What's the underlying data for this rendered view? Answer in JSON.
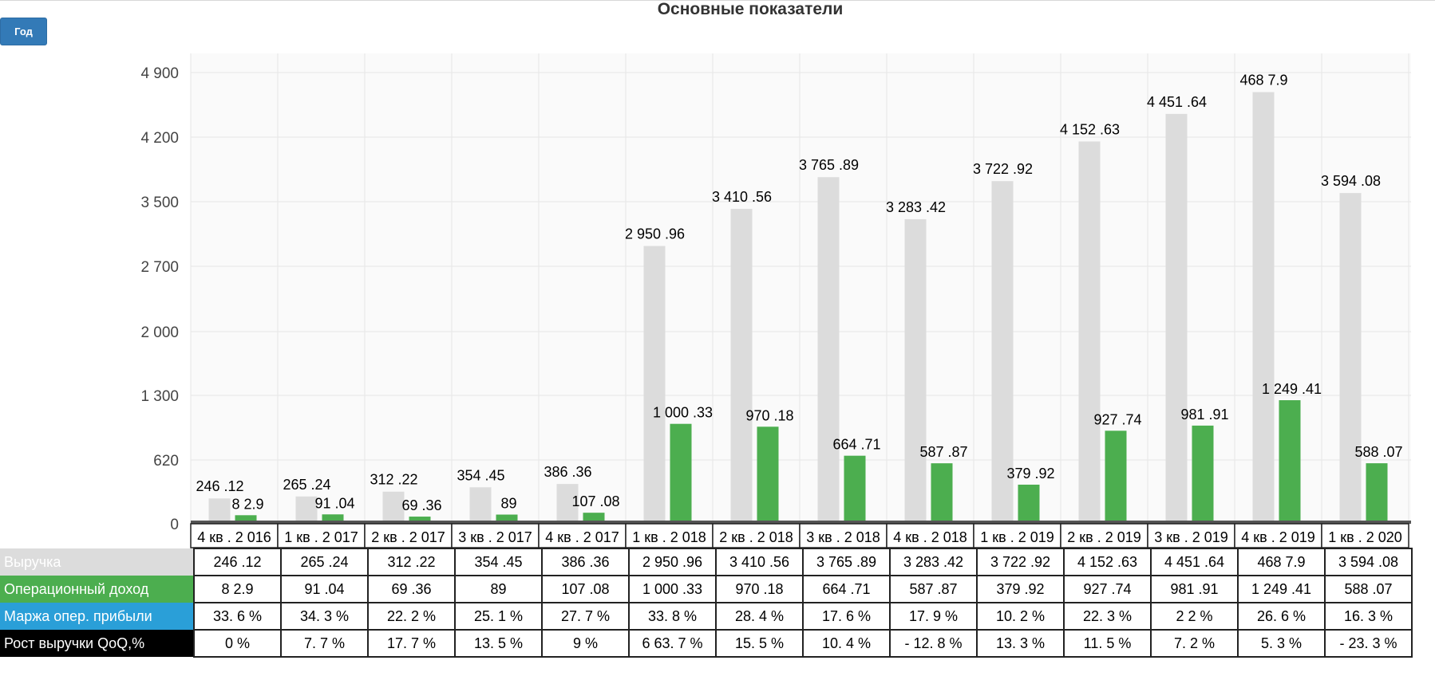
{
  "title": "Основные показатели",
  "period_button": "Год",
  "colors": {
    "revenue": "#dcdcdc",
    "operating_income": "#4cae4f",
    "margin": "#2a9fd8",
    "growth": "#000000"
  },
  "chart_data": {
    "type": "bar",
    "title": "Основные показатели",
    "grid": true,
    "categories": [
      "4 кв . 2 016",
      "1 кв . 2 017",
      "2 кв . 2 017",
      "3 кв . 2 017",
      "4 кв . 2 017",
      "1 кв . 2 018",
      "2 кв . 2 018",
      "3 кв . 2 018",
      "4 кв . 2 018",
      "1 кв . 2 019",
      "2 кв . 2 019",
      "3 кв . 2 019",
      "4 кв . 2 019",
      "1 кв . 2 020"
    ],
    "y_ticks": [
      0,
      620,
      1300,
      2000,
      2700,
      3500,
      4200,
      4900
    ],
    "y_tick_labels": [
      "0",
      "620",
      "1 300",
      "2 000",
      "2 700",
      "3 500",
      "4 200",
      "4 900"
    ],
    "ylim": [
      0,
      5100
    ],
    "series": [
      {
        "name": "Выручка",
        "values": [
          246.12,
          265.24,
          312.22,
          354.45,
          386.36,
          2950.96,
          3410.56,
          3765.89,
          3283.42,
          3722.92,
          4152.63,
          4451.64,
          4687.9,
          3594.08
        ],
        "labels": [
          "246 .12",
          "265 .24",
          "312 .22",
          "354 .45",
          "386 .36",
          "2 950 .96",
          "3 410 .56",
          "3 765 .89",
          "3 283 .42",
          "3 722 .92",
          "4 152 .63",
          "4 451 .64",
          "468 7.9",
          "3 594 .08"
        ]
      },
      {
        "name": "Операционный доход",
        "values": [
          82.9,
          91.04,
          69.36,
          89,
          107.08,
          1000.33,
          970.18,
          664.71,
          587.87,
          379.92,
          927.74,
          981.91,
          1249.41,
          588.07
        ],
        "labels": [
          "8 2.9",
          "91 .04",
          "69 .36",
          "89",
          "107 .08",
          "1 000 .33",
          "970 .18",
          "664 .71",
          "587 .87",
          "379 .92",
          "927 .74",
          "981 .91",
          "1 249 .41",
          "588 .07"
        ]
      },
      {
        "name": "Маржа опер. прибыли",
        "values": [
          33.6,
          34.3,
          22.2,
          25.1,
          27.7,
          33.8,
          28.4,
          17.6,
          17.9,
          10.2,
          22.3,
          22,
          26.6,
          16.3
        ],
        "labels": [
          "33. 6 %",
          "34. 3 %",
          "22. 2 %",
          "25. 1 %",
          "27. 7 %",
          "33. 8 %",
          "28. 4 %",
          "17. 6 %",
          "17. 9 %",
          "10. 2 %",
          "22. 3 %",
          "2 2 %",
          "26. 6 %",
          "16. 3 %"
        ]
      },
      {
        "name": "Рост выручки QoQ,%",
        "values": [
          0,
          7.7,
          17.7,
          13.5,
          9,
          663.7,
          15.5,
          10.4,
          -12.8,
          13.3,
          11.5,
          7.2,
          5.3,
          -23.3
        ],
        "labels": [
          "0 %",
          "7. 7 %",
          "17. 7 %",
          "13. 5 %",
          "9 %",
          "6 63. 7 %",
          "15. 5 %",
          "10. 4 %",
          "- 12. 8 %",
          "13. 3 %",
          "11. 5 %",
          "7. 2 %",
          "5. 3 %",
          "- 23. 3 %"
        ]
      }
    ]
  }
}
